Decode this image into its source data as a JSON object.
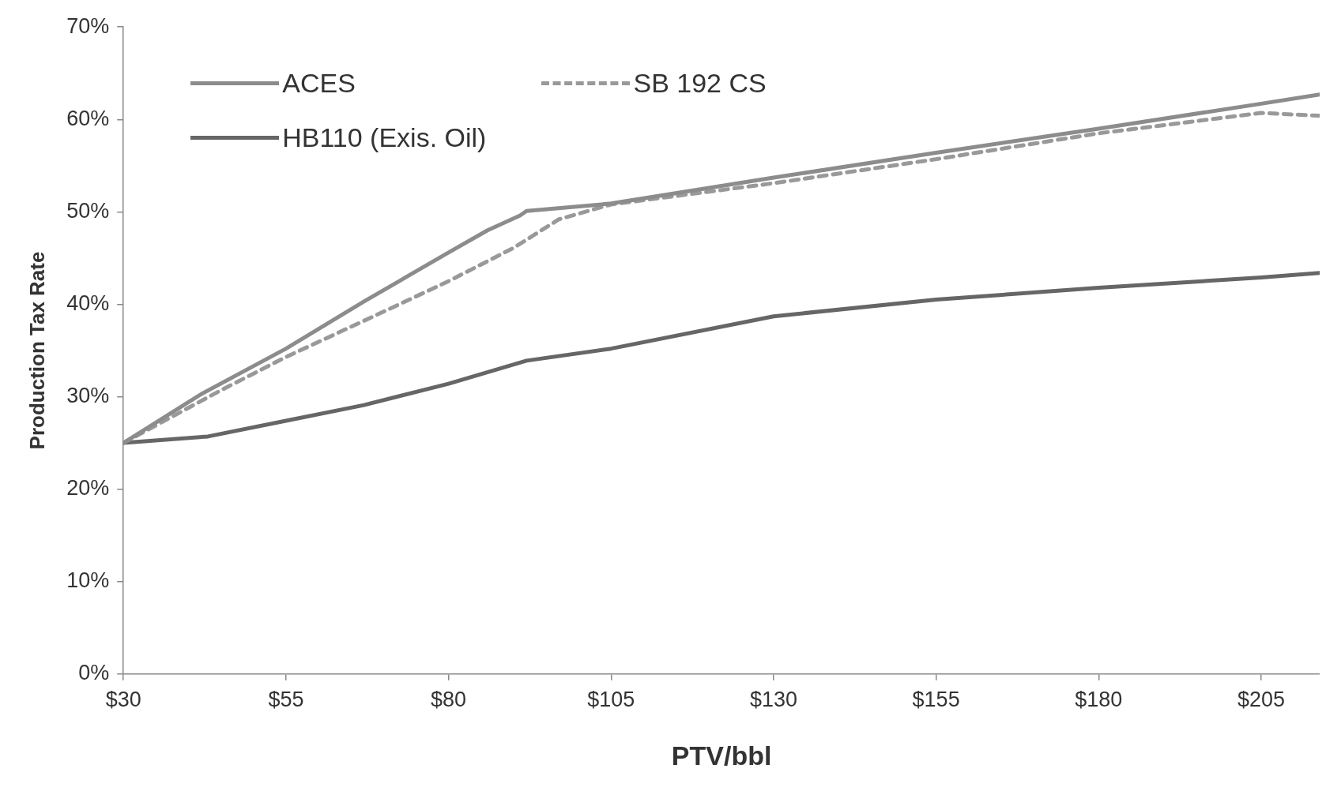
{
  "chart_data": {
    "type": "line",
    "xlabel": "PTV/bbl",
    "ylabel": "Production Tax Rate",
    "xlim": [
      30,
      214
    ],
    "ylim": [
      0,
      70
    ],
    "xticks": [
      {
        "value": 30,
        "label": "$30"
      },
      {
        "value": 55,
        "label": "$55"
      },
      {
        "value": 80,
        "label": "$80"
      },
      {
        "value": 105,
        "label": "$105"
      },
      {
        "value": 130,
        "label": "$130"
      },
      {
        "value": 155,
        "label": "$155"
      },
      {
        "value": 180,
        "label": "$180"
      },
      {
        "value": 205,
        "label": "$205"
      }
    ],
    "yticks": [
      {
        "value": 0,
        "label": "0%"
      },
      {
        "value": 10,
        "label": "10%"
      },
      {
        "value": 20,
        "label": "20%"
      },
      {
        "value": 30,
        "label": "30%"
      },
      {
        "value": 40,
        "label": "40%"
      },
      {
        "value": 50,
        "label": "50%"
      },
      {
        "value": 60,
        "label": "60%"
      },
      {
        "value": 70,
        "label": "70%"
      }
    ],
    "grid": false,
    "legend": "top left",
    "marker": "none",
    "line_style": "solid",
    "series": [
      {
        "name": "ACES",
        "color": "#8c8c8c",
        "x": [
          30,
          42,
          55,
          67,
          80,
          86,
          91,
          92,
          105,
          130,
          155,
          180,
          205,
          214
        ],
        "values": [
          25,
          30.3,
          35.2,
          40.3,
          45.6,
          48,
          49.6,
          50.1,
          50.9,
          53.7,
          56.4,
          59,
          61.7,
          62.7
        ]
      },
      {
        "name": "SB 192 CS",
        "color": "#999999",
        "line_style": "dashed",
        "x": [
          30,
          45,
          55,
          70,
          80,
          90,
          97,
          105,
          130,
          155,
          180,
          205,
          214
        ],
        "values": [
          25,
          30.7,
          34.3,
          39.2,
          42.5,
          46.1,
          49.2,
          50.8,
          53.1,
          55.7,
          58.5,
          60.7,
          60.4
        ]
      },
      {
        "name": "HB110 (Exis. Oil)",
        "color": "#666666",
        "x": [
          30,
          43,
          55,
          67,
          80,
          92,
          105,
          130,
          155,
          180,
          205,
          214
        ],
        "values": [
          25,
          25.7,
          27.4,
          29.1,
          31.4,
          33.9,
          35.2,
          38.7,
          40.5,
          41.8,
          42.9,
          43.4
        ]
      }
    ]
  }
}
